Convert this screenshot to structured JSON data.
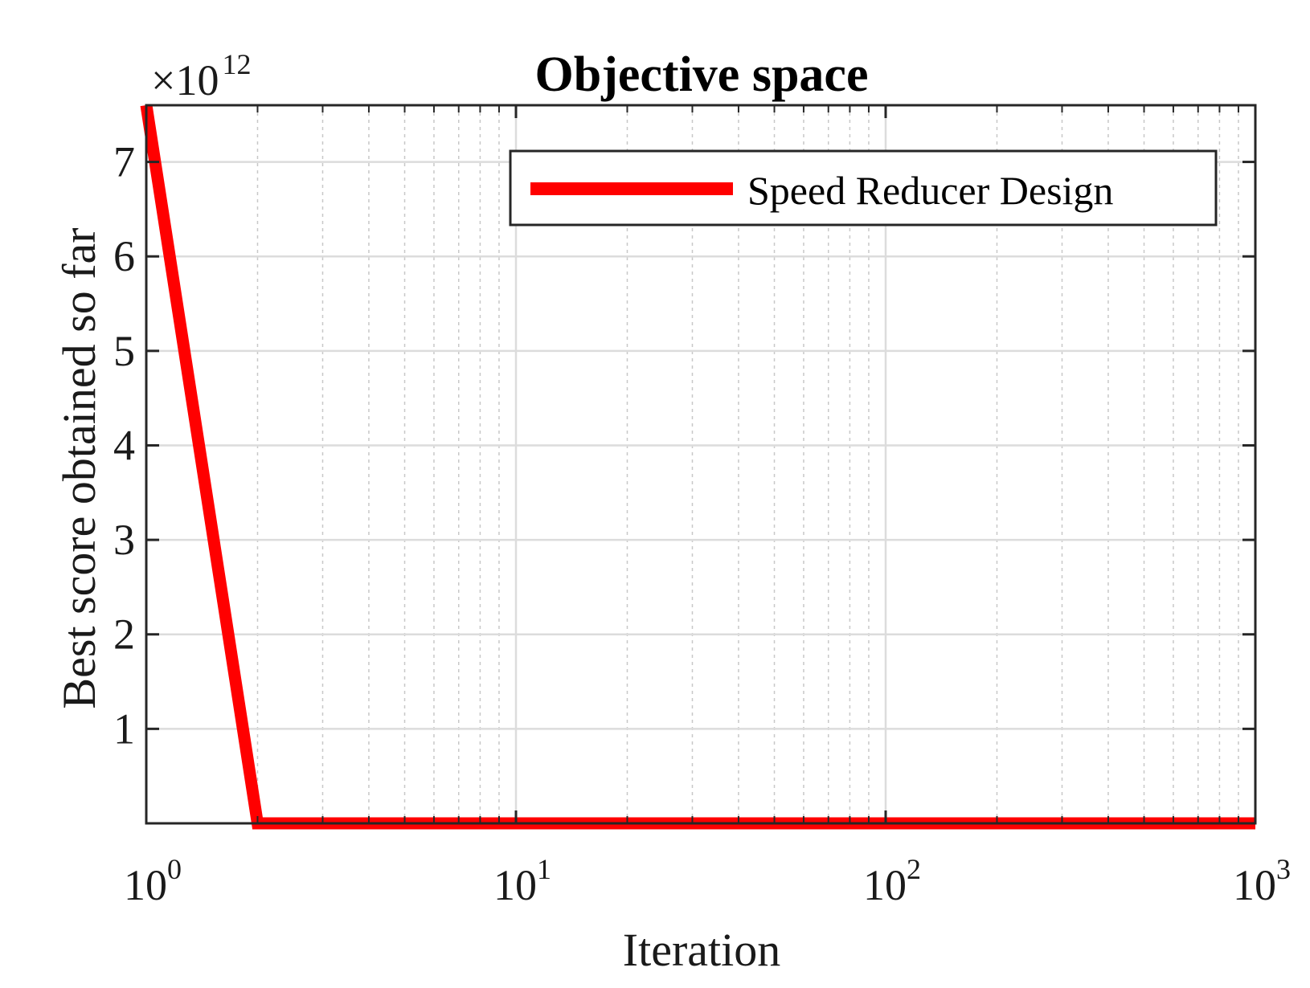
{
  "chart_data": {
    "type": "line",
    "title": "Objective space",
    "xlabel": "Iteration",
    "ylabel": "Best score obtained so far",
    "x_scale": "log",
    "xlim": [
      1,
      1000
    ],
    "ylim": [
      0,
      7600000000000.0
    ],
    "y_exponent_label": {
      "base": "×10",
      "exponent": "12"
    },
    "x_ticks": [
      {
        "base": "10",
        "exponent": "0",
        "value": 1
      },
      {
        "base": "10",
        "exponent": "1",
        "value": 10
      },
      {
        "base": "10",
        "exponent": "2",
        "value": 100
      },
      {
        "base": "10",
        "exponent": "3",
        "value": 1000
      }
    ],
    "y_ticks": [
      {
        "label": "1",
        "value": 1000000000000.0
      },
      {
        "label": "2",
        "value": 2000000000000.0
      },
      {
        "label": "3",
        "value": 3000000000000.0
      },
      {
        "label": "4",
        "value": 4000000000000.0
      },
      {
        "label": "5",
        "value": 5000000000000.0
      },
      {
        "label": "6",
        "value": 6000000000000.0
      },
      {
        "label": "7",
        "value": 7000000000000.0
      }
    ],
    "grid": true,
    "legend_position": "top-right",
    "series": [
      {
        "name": "Speed Reducer Design",
        "color": "#ff0000",
        "x": [
          1,
          2,
          1000
        ],
        "y": [
          7600000000000.0,
          0,
          0
        ]
      }
    ]
  }
}
